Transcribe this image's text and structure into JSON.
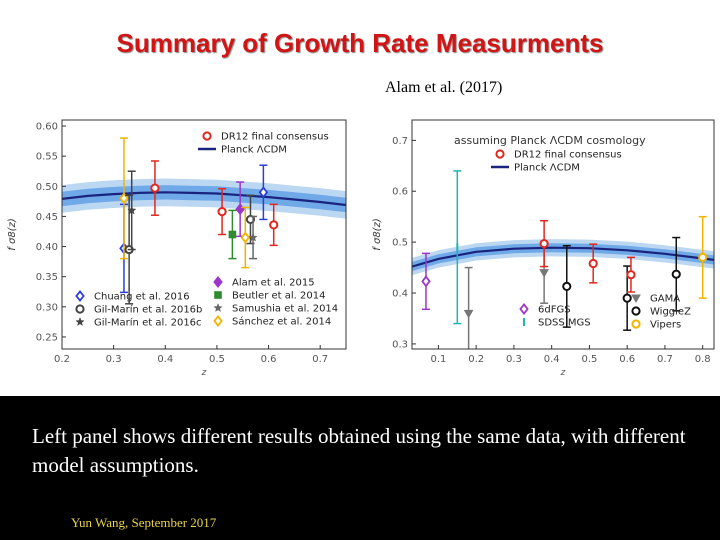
{
  "slide": {
    "title": "Summary of Growth Rate Measurments",
    "citation": "Alam et al. (2017)",
    "caption": "Left panel shows different results obtained using the same data, with different model assumptions.",
    "footer": "Yun Wang, September 2017"
  },
  "chart_data": [
    {
      "type": "scatter",
      "title": "",
      "xlabel": "z",
      "ylabel": "f σ8(z)",
      "xlim": [
        0.2,
        0.75
      ],
      "ylim": [
        0.23,
        0.61
      ],
      "xticks": [
        0.2,
        0.3,
        0.4,
        0.5,
        0.6,
        0.7
      ],
      "xtick_labels": [
        "0.2",
        "0.3",
        "0.4",
        "0.5",
        "0.6",
        "0.7"
      ],
      "yticks": [
        0.25,
        0.3,
        0.35,
        0.4,
        0.45,
        0.5,
        0.55,
        0.6
      ],
      "ytick_labels": [
        "0.25",
        "0.30",
        "0.35",
        "0.40",
        "0.45",
        "0.50",
        "0.55",
        "0.60"
      ],
      "model_band": {
        "name": "Planck ΛCDM",
        "z": [
          0.2,
          0.25,
          0.3,
          0.35,
          0.4,
          0.45,
          0.5,
          0.55,
          0.6,
          0.65,
          0.7,
          0.75
        ],
        "center": [
          0.479,
          0.484,
          0.487,
          0.489,
          0.49,
          0.489,
          0.488,
          0.485,
          0.482,
          0.478,
          0.474,
          0.469
        ],
        "sigma1": 0.012,
        "sigma2": 0.023,
        "line_color": "#1a237e",
        "band1_color": "#6fa9e8",
        "band2_color": "#bcd7f2"
      },
      "legend_top": [
        {
          "label": "DR12 final consensus",
          "marker": "circle-open",
          "color": "#e0281f"
        },
        {
          "label": "Planck ΛCDM",
          "marker": "line",
          "color": "#1a237e"
        }
      ],
      "legend_bottom_left": [
        {
          "label": "Chuang et al. 2016",
          "marker": "diamond-open",
          "color": "#2b3fd6"
        },
        {
          "label": "Gil-Marín et al. 2016b",
          "marker": "circle-open",
          "color": "#444444"
        },
        {
          "label": "Gil-Marín et al. 2016c",
          "marker": "star",
          "color": "#444444"
        }
      ],
      "legend_bottom_right": [
        {
          "label": "Alam et al. 2015",
          "marker": "diamond",
          "color": "#9c35c8"
        },
        {
          "label": "Beutler et al. 2014",
          "marker": "square",
          "color": "#2e8b2e"
        },
        {
          "label": "Samushia et al. 2014",
          "marker": "star",
          "color": "#666666"
        },
        {
          "label": "Sánchez et al. 2014",
          "marker": "diamond-open",
          "color": "#f0b400"
        }
      ],
      "legend_bottom_left_labels": [
        "Chuang et al. 2016",
        "Gil-Marín et al. 2016b",
        "Gil-Marín et al. 2016c"
      ],
      "legend_bottom_right_labels": [
        "Alam et al. 2015",
        "Beutler et al. 2014",
        "Samushia et al. 2014",
        "Sánchez et al. 2014"
      ],
      "legend_top_labels": [
        "DR12 final consensus",
        "Planck ΛCDM"
      ],
      "points": [
        {
          "series": "Chuang et al. 2016",
          "z": 0.32,
          "y": 0.397,
          "err": 0.073,
          "color": "#2b3fd6",
          "marker": "diamond-open"
        },
        {
          "series": "Sánchez et al. 2014",
          "z": 0.32,
          "y": 0.48,
          "err": 0.1,
          "color": "#f0b400",
          "marker": "diamond-open"
        },
        {
          "series": "Gil-Marín et al. 2016b",
          "z": 0.33,
          "y": 0.395,
          "err": 0.09,
          "color": "#444444",
          "marker": "circle-open"
        },
        {
          "series": "Gil-Marín et al. 2016c",
          "z": 0.335,
          "y": 0.46,
          "err": 0.065,
          "color": "#444444",
          "marker": "star"
        },
        {
          "series": "DR12 final consensus",
          "z": 0.38,
          "y": 0.497,
          "err": 0.045,
          "color": "#e0281f",
          "marker": "circle-open"
        },
        {
          "series": "DR12 final consensus",
          "z": 0.51,
          "y": 0.458,
          "err": 0.038,
          "color": "#e0281f",
          "marker": "circle-open"
        },
        {
          "series": "DR12 final consensus",
          "z": 0.61,
          "y": 0.436,
          "err": 0.034,
          "color": "#e0281f",
          "marker": "circle-open"
        },
        {
          "series": "Beutler et al. 2014",
          "z": 0.53,
          "y": 0.42,
          "err": 0.04,
          "color": "#2e8b2e",
          "marker": "square"
        },
        {
          "series": "Alam et al. 2015",
          "z": 0.545,
          "y": 0.462,
          "err": 0.045,
          "color": "#9c35c8",
          "marker": "diamond"
        },
        {
          "series": "Sánchez et al. 2014",
          "z": 0.555,
          "y": 0.415,
          "err": 0.05,
          "color": "#f0b400",
          "marker": "diamond-open"
        },
        {
          "series": "Gil-Marín et al. 2016b",
          "z": 0.565,
          "y": 0.445,
          "err": 0.04,
          "color": "#444444",
          "marker": "circle-open"
        },
        {
          "series": "Samushia et al. 2014",
          "z": 0.57,
          "y": 0.415,
          "err": 0.035,
          "color": "#666666",
          "marker": "star"
        },
        {
          "series": "Chuang et al. 2016",
          "z": 0.59,
          "y": 0.49,
          "err": 0.045,
          "color": "#2b3fd6",
          "marker": "diamond-open"
        }
      ]
    },
    {
      "type": "scatter",
      "title": "",
      "annotation": "assuming Planck ΛCDM cosmology",
      "xlabel": "z",
      "ylabel": "f σ8(z)",
      "xlim": [
        0.03,
        0.83
      ],
      "ylim": [
        0.29,
        0.74
      ],
      "xticks": [
        0.1,
        0.2,
        0.3,
        0.4,
        0.5,
        0.6,
        0.7,
        0.8
      ],
      "xtick_labels": [
        "0.1",
        "0.2",
        "0.3",
        "0.4",
        "0.5",
        "0.6",
        "0.7",
        "0.8"
      ],
      "yticks": [
        0.3,
        0.4,
        0.5,
        0.6,
        0.7
      ],
      "ytick_labels": [
        "0.3",
        "0.4",
        "0.5",
        "0.6",
        "0.7"
      ],
      "model_band": {
        "name": "Planck ΛCDM",
        "z": [
          0.03,
          0.1,
          0.2,
          0.3,
          0.4,
          0.5,
          0.6,
          0.7,
          0.83
        ],
        "center": [
          0.452,
          0.467,
          0.481,
          0.487,
          0.489,
          0.488,
          0.484,
          0.477,
          0.465
        ],
        "sigma1": 0.009,
        "sigma2": 0.017,
        "line_color": "#1a237e",
        "band1_color": "#6fa9e8",
        "band2_color": "#bcd7f2"
      },
      "legend_top": [
        {
          "label": "DR12 final consensus",
          "marker": "circle-open",
          "color": "#e0281f"
        },
        {
          "label": "Planck ΛCDM",
          "marker": "line",
          "color": "#1a237e"
        }
      ],
      "legend_bottom_left": [
        {
          "label": "6dFGS",
          "marker": "diamond-open",
          "color": "#9c35c8"
        },
        {
          "label": "SDSS MGS",
          "marker": "bar",
          "color": "#1fb5b5"
        }
      ],
      "legend_bottom_right": [
        {
          "label": "GAMA",
          "marker": "triangle",
          "color": "#777777"
        },
        {
          "label": "WiggleZ",
          "marker": "circle-open",
          "color": "#111111"
        },
        {
          "label": "Vipers",
          "marker": "circle-open",
          "color": "#f0b400"
        }
      ],
      "legend_top_labels": [
        "DR12 final consensus",
        "Planck ΛCDM"
      ],
      "legend_bottom_left_labels": [
        "6dFGS",
        "SDSS MGS"
      ],
      "legend_bottom_right_labels": [
        "GAMA",
        "WiggleZ",
        "Vipers"
      ],
      "points": [
        {
          "series": "6dFGS",
          "z": 0.067,
          "y": 0.423,
          "err": 0.055,
          "color": "#9c35c8",
          "marker": "diamond-open"
        },
        {
          "series": "SDSS MGS",
          "z": 0.15,
          "y": 0.49,
          "err": 0.15,
          "color": "#1fb5b5",
          "marker": "bar"
        },
        {
          "series": "GAMA",
          "z": 0.18,
          "y": 0.36,
          "err": 0.09,
          "color": "#777777",
          "marker": "triangle"
        },
        {
          "series": "GAMA",
          "z": 0.38,
          "y": 0.44,
          "err": 0.06,
          "color": "#777777",
          "marker": "triangle"
        },
        {
          "series": "DR12 final consensus",
          "z": 0.38,
          "y": 0.497,
          "err": 0.045,
          "color": "#e0281f",
          "marker": "circle-open"
        },
        {
          "series": "WiggleZ",
          "z": 0.44,
          "y": 0.413,
          "err": 0.08,
          "color": "#111111",
          "marker": "circle-open"
        },
        {
          "series": "DR12 final consensus",
          "z": 0.51,
          "y": 0.458,
          "err": 0.038,
          "color": "#e0281f",
          "marker": "circle-open"
        },
        {
          "series": "WiggleZ",
          "z": 0.6,
          "y": 0.39,
          "err": 0.063,
          "color": "#111111",
          "marker": "circle-open"
        },
        {
          "series": "DR12 final consensus",
          "z": 0.61,
          "y": 0.436,
          "err": 0.034,
          "color": "#e0281f",
          "marker": "circle-open"
        },
        {
          "series": "WiggleZ",
          "z": 0.73,
          "y": 0.437,
          "err": 0.072,
          "color": "#111111",
          "marker": "circle-open"
        },
        {
          "series": "Vipers",
          "z": 0.8,
          "y": 0.47,
          "err": 0.08,
          "color": "#f0b400",
          "marker": "circle-open"
        }
      ]
    }
  ]
}
